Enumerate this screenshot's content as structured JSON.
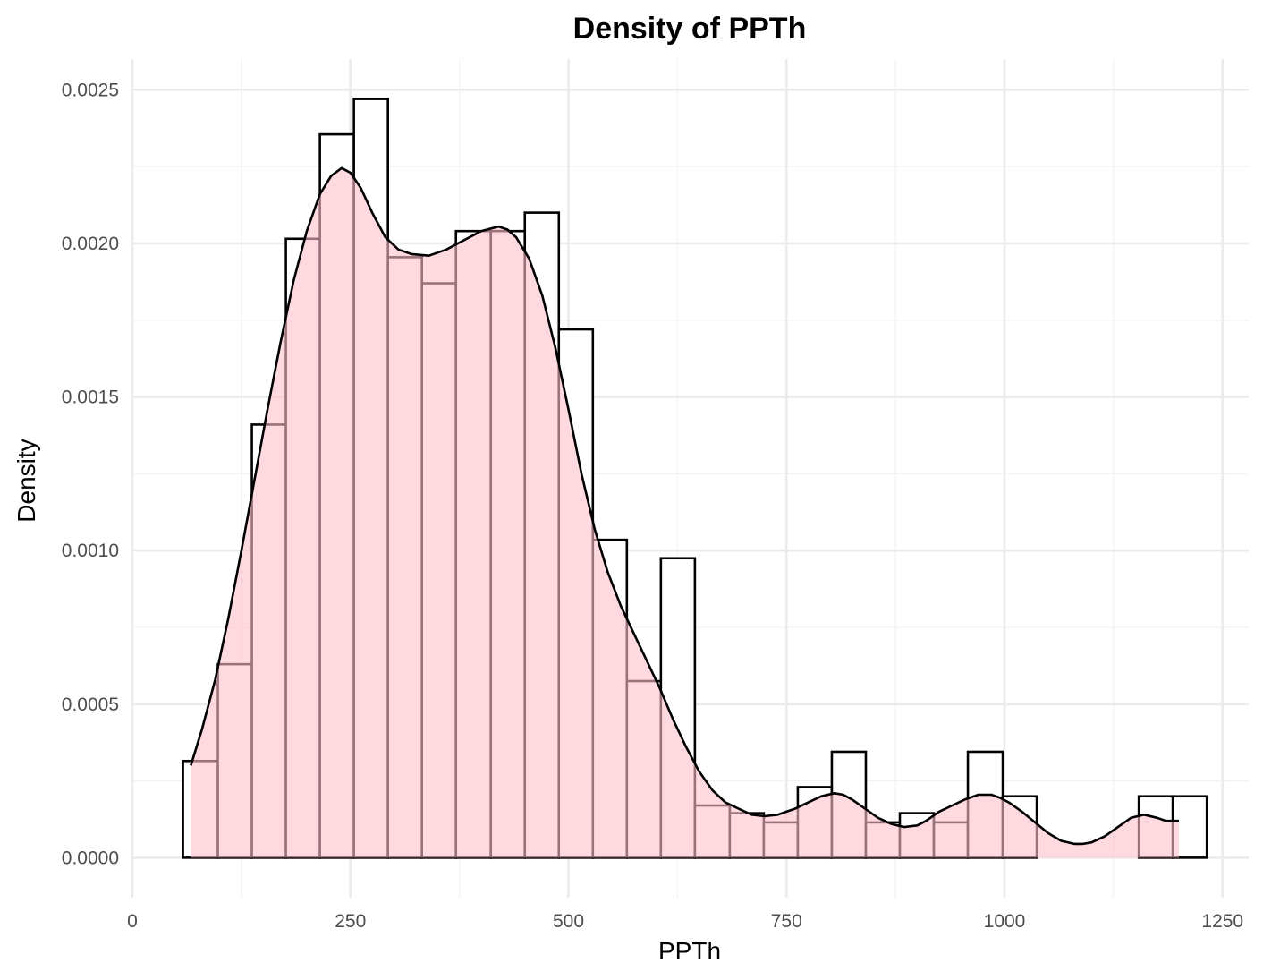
{
  "chart_data": {
    "type": "histogram",
    "title": "Density of PPTh",
    "xlabel": "PPTh",
    "ylabel": "Density",
    "xlim": [
      0,
      1280
    ],
    "ylim": [
      -0.00013,
      0.0026
    ],
    "x_ticks": [
      0,
      250,
      500,
      750,
      1000,
      1250
    ],
    "x_tick_labels": [
      "0",
      "250",
      "500",
      "750",
      "1000",
      "1250"
    ],
    "y_ticks": [
      0,
      0.0005,
      0.001,
      0.0015,
      0.002,
      0.0025
    ],
    "y_tick_labels": [
      "0.0000",
      "0.0005",
      "0.0010",
      "0.0015",
      "0.0020",
      "0.0025"
    ],
    "grid": true,
    "colors": {
      "bar_fill": "#ffffff",
      "bar_stroke": "#000000",
      "density_fill": "#ffc0cb",
      "density_line": "#000000",
      "grid_major": "#ebebeb",
      "grid_minor": "#f2f2f2",
      "text": "#000000",
      "tick_text": "#4d4d4d"
    },
    "bins": [
      {
        "x0": 58,
        "x1": 98,
        "density": 0.000315
      },
      {
        "x0": 98,
        "x1": 137,
        "density": 0.00063
      },
      {
        "x0": 137,
        "x1": 176,
        "density": 0.00141
      },
      {
        "x0": 176,
        "x1": 215,
        "density": 0.002015
      },
      {
        "x0": 215,
        "x1": 254,
        "density": 0.002355
      },
      {
        "x0": 254,
        "x1": 293,
        "density": 0.00247
      },
      {
        "x0": 293,
        "x1": 332,
        "density": 0.001955
      },
      {
        "x0": 332,
        "x1": 371,
        "density": 0.00187
      },
      {
        "x0": 371,
        "x1": 411,
        "density": 0.00204
      },
      {
        "x0": 411,
        "x1": 450,
        "density": 0.00204
      },
      {
        "x0": 450,
        "x1": 489,
        "density": 0.0021
      },
      {
        "x0": 489,
        "x1": 528,
        "density": 0.00172
      },
      {
        "x0": 528,
        "x1": 567,
        "density": 0.001035
      },
      {
        "x0": 567,
        "x1": 606,
        "density": 0.000575
      },
      {
        "x0": 606,
        "x1": 645,
        "density": 0.000975
      },
      {
        "x0": 645,
        "x1": 685,
        "density": 0.00017
      },
      {
        "x0": 685,
        "x1": 724,
        "density": 0.000145
      },
      {
        "x0": 724,
        "x1": 763,
        "density": 0.000115
      },
      {
        "x0": 763,
        "x1": 802,
        "density": 0.00023
      },
      {
        "x0": 802,
        "x1": 841,
        "density": 0.000345
      },
      {
        "x0": 841,
        "x1": 880,
        "density": 0.000115
      },
      {
        "x0": 880,
        "x1": 919,
        "density": 0.000145
      },
      {
        "x0": 919,
        "x1": 958,
        "density": 0.000115
      },
      {
        "x0": 958,
        "x1": 998,
        "density": 0.000345
      },
      {
        "x0": 998,
        "x1": 1037,
        "density": 0.0002
      },
      {
        "x0": 1037,
        "x1": 1076,
        "density": 0
      },
      {
        "x0": 1076,
        "x1": 1115,
        "density": 0
      },
      {
        "x0": 1115,
        "x1": 1154,
        "density": 0
      },
      {
        "x0": 1154,
        "x1": 1193,
        "density": 0.0002
      },
      {
        "x0": 1193,
        "x1": 1232,
        "density": 0.0002
      }
    ],
    "density_curve": {
      "x": [
        67,
        80,
        95,
        110,
        125,
        140,
        155,
        170,
        185,
        200,
        215,
        228,
        240,
        250,
        262,
        275,
        290,
        305,
        320,
        340,
        360,
        380,
        400,
        420,
        430,
        440,
        455,
        470,
        485,
        500,
        515,
        530,
        545,
        560,
        575,
        590,
        605,
        620,
        635,
        650,
        665,
        680,
        695,
        710,
        725,
        740,
        750,
        760,
        775,
        790,
        805,
        815,
        825,
        840,
        855,
        870,
        885,
        900,
        910,
        925,
        940,
        955,
        970,
        985,
        995,
        1005,
        1020,
        1035,
        1050,
        1065,
        1080,
        1090,
        1100,
        1115,
        1130,
        1145,
        1160,
        1175,
        1185,
        1200
      ],
      "y": [
        0.0003,
        0.00042,
        0.00058,
        0.00078,
        0.001,
        0.00123,
        0.00146,
        0.00168,
        0.00188,
        0.00204,
        0.00216,
        0.00222,
        0.002245,
        0.00223,
        0.00218,
        0.0021,
        0.00202,
        0.00198,
        0.001965,
        0.00196,
        0.00198,
        0.00201,
        0.00204,
        0.002055,
        0.002045,
        0.00202,
        0.00195,
        0.00183,
        0.00166,
        0.00146,
        0.00125,
        0.00107,
        0.00093,
        0.00082,
        0.00073,
        0.00064,
        0.00055,
        0.00045,
        0.00036,
        0.00028,
        0.00022,
        0.00018,
        0.00016,
        0.00014,
        0.000135,
        0.00014,
        0.00015,
        0.00016,
        0.00018,
        0.0002,
        0.00021,
        0.000205,
        0.00019,
        0.00016,
        0.00013,
        0.00011,
        0.0001,
        0.000105,
        0.00012,
        0.00015,
        0.00017,
        0.00019,
        0.000205,
        0.000205,
        0.000195,
        0.00018,
        0.00015,
        0.000115,
        8e-05,
        5.5e-05,
        4.5e-05,
        4.5e-05,
        5e-05,
        7e-05,
        0.0001,
        0.00013,
        0.00014,
        0.00013,
        0.00012,
        0.00012
      ]
    }
  }
}
